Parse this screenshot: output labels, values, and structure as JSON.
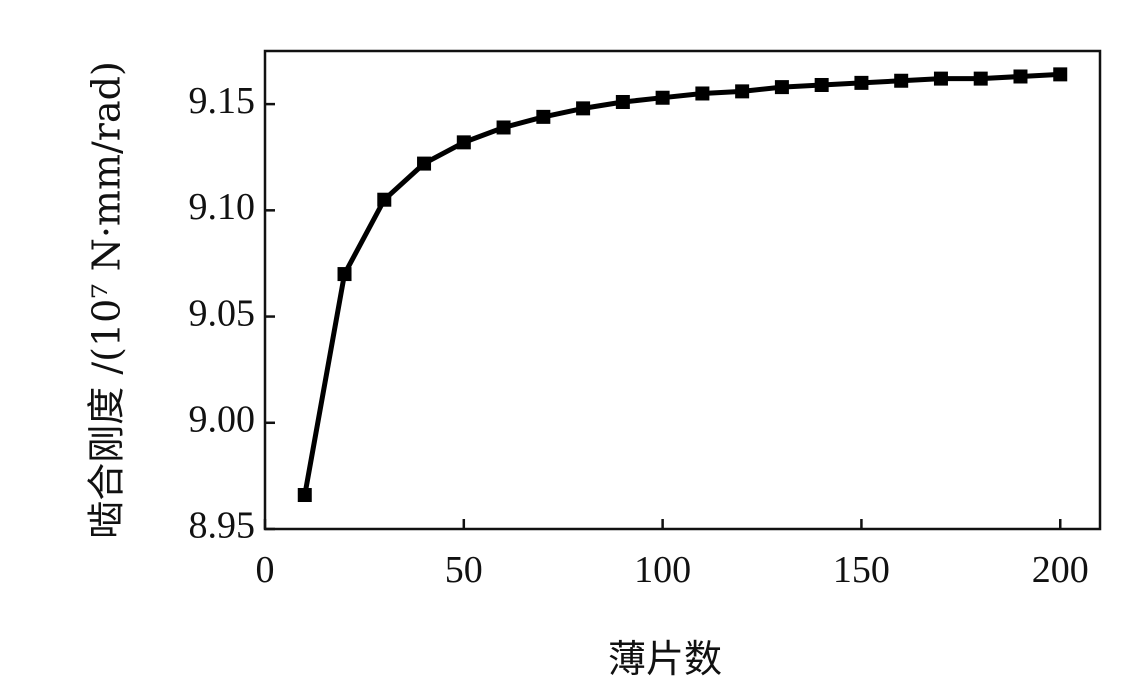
{
  "chart_data": {
    "type": "line",
    "title": "",
    "xlabel": "薄片数",
    "ylabel": "啮合刚度 /(10⁷ N·mm/rad)",
    "xlim": [
      0,
      210
    ],
    "ylim": [
      8.95,
      9.175
    ],
    "xticks": [
      0,
      50,
      100,
      150,
      200
    ],
    "xtick_labels": [
      "0",
      "50",
      "100",
      "150",
      "200"
    ],
    "yticks": [
      8.95,
      9.0,
      9.05,
      9.1,
      9.15
    ],
    "ytick_labels": [
      "8.95",
      "9.00",
      "9.05",
      "9.10",
      "9.15"
    ],
    "grid": false,
    "legend": "none",
    "marker": "square",
    "line_color": "#000000",
    "series": [
      {
        "x": [
          10,
          20,
          30,
          40,
          50,
          60,
          70,
          80,
          90,
          100,
          110,
          120,
          130,
          140,
          150,
          160,
          170,
          180,
          190,
          200
        ],
        "values": [
          8.966,
          9.07,
          9.105,
          9.122,
          9.132,
          9.139,
          9.144,
          9.148,
          9.151,
          9.153,
          9.155,
          9.156,
          9.158,
          9.159,
          9.16,
          9.161,
          9.162,
          9.162,
          9.163,
          9.164
        ]
      }
    ]
  }
}
